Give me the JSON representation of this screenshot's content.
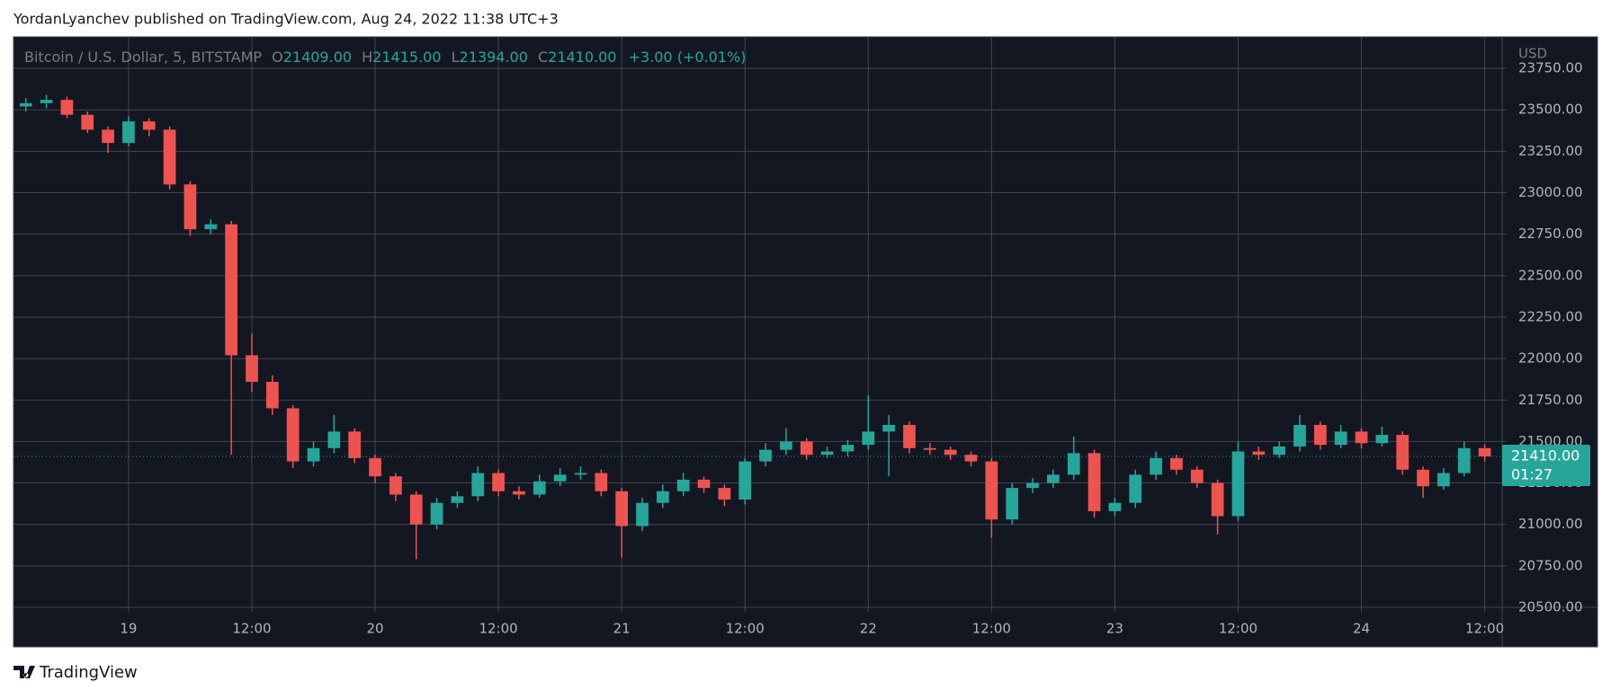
{
  "header": {
    "text": "YordanLyanchev published on TradingView.com, Aug 24, 2022 11:38 UTC+3"
  },
  "footer": {
    "brand": "TradingView"
  },
  "chart_data": {
    "type": "candlestick",
    "legend": {
      "symbol": "Bitcoin / U.S. Dollar, 5, BITSTAMP",
      "o_label": "O",
      "open": "21409.00",
      "h_label": "H",
      "high": "21415.00",
      "l_label": "L",
      "low": "21394.00",
      "c_label": "C",
      "close": "21410.00",
      "change": "+3.00 (+0.01%)"
    },
    "currency": "USD",
    "last_price": {
      "value": 21410,
      "label": "21410.00"
    },
    "countdown": "01:27",
    "up_color": "#26a69a",
    "down_color": "#ef5350",
    "grid": true,
    "xlim": [
      -11.2,
      133.7
    ],
    "xticks": [
      {
        "value": 0,
        "label": "19"
      },
      {
        "value": 12,
        "label": "12:00"
      },
      {
        "value": 24,
        "label": "20"
      },
      {
        "value": 36,
        "label": "12:00"
      },
      {
        "value": 48,
        "label": "21"
      },
      {
        "value": 60,
        "label": "12:00"
      },
      {
        "value": 72,
        "label": "22"
      },
      {
        "value": 84,
        "label": "12:00"
      },
      {
        "value": 96,
        "label": "23"
      },
      {
        "value": 108,
        "label": "12:00"
      },
      {
        "value": 120,
        "label": "24"
      },
      {
        "value": 132,
        "label": "12:00"
      }
    ],
    "ylim": [
      20500,
      23940
    ],
    "yticks": [
      {
        "value": 20500,
        "label": "20500.00"
      },
      {
        "value": 20750,
        "label": "20750.00"
      },
      {
        "value": 21000,
        "label": "21000.00"
      },
      {
        "value": 21250,
        "label": "21250.00"
      },
      {
        "value": 21500,
        "label": "21500.00"
      },
      {
        "value": 21750,
        "label": "21750.00"
      },
      {
        "value": 22000,
        "label": "22000.00"
      },
      {
        "value": 22250,
        "label": "22250.00"
      },
      {
        "value": 22500,
        "label": "22500.00"
      },
      {
        "value": 22750,
        "label": "22750.00"
      },
      {
        "value": 23000,
        "label": "23000.00"
      },
      {
        "value": 23250,
        "label": "23250.00"
      },
      {
        "value": 23500,
        "label": "23500.00"
      },
      {
        "value": 23750,
        "label": "23750.00"
      }
    ],
    "x": [
      -10,
      -8,
      -6,
      -4,
      -2,
      0,
      2,
      4,
      6,
      8,
      10,
      12,
      14,
      16,
      18,
      20,
      22,
      24,
      26,
      28,
      30,
      32,
      34,
      36,
      38,
      40,
      42,
      44,
      46,
      48,
      50,
      52,
      54,
      56,
      58,
      60,
      62,
      64,
      66,
      68,
      70,
      72,
      74,
      76,
      78,
      80,
      82,
      84,
      86,
      88,
      90,
      92,
      94,
      96,
      98,
      100,
      102,
      104,
      106,
      108,
      110,
      112,
      114,
      116,
      118,
      120,
      122,
      124,
      126,
      128,
      130,
      132
    ],
    "open": [
      23520,
      23540,
      23560,
      23470,
      23380,
      23300,
      23430,
      23380,
      23050,
      22780,
      22810,
      22020,
      21860,
      21700,
      21380,
      21460,
      21560,
      21400,
      21290,
      21180,
      21000,
      21130,
      21170,
      21310,
      21200,
      21180,
      21260,
      21300,
      21310,
      21200,
      20990,
      21130,
      21200,
      21270,
      21220,
      21150,
      21380,
      21450,
      21500,
      21420,
      21440,
      21480,
      21560,
      21600,
      21460,
      21450,
      21420,
      21380,
      21030,
      21220,
      21250,
      21300,
      21430,
      21080,
      21130,
      21300,
      21400,
      21330,
      21250,
      21050,
      21440,
      21420,
      21470,
      21600,
      21480,
      21560,
      21490,
      21540,
      21330,
      21230,
      21310,
      21460
    ],
    "high": [
      23570,
      23590,
      23580,
      23490,
      23400,
      23460,
      23450,
      23400,
      23070,
      22840,
      22830,
      22150,
      21900,
      21720,
      21500,
      21660,
      21580,
      21420,
      21310,
      21200,
      21160,
      21200,
      21350,
      21330,
      21230,
      21300,
      21340,
      21350,
      21330,
      21220,
      21160,
      21240,
      21310,
      21290,
      21240,
      21400,
      21490,
      21580,
      21520,
      21470,
      21510,
      21780,
      21660,
      21620,
      21490,
      21470,
      21440,
      21400,
      21250,
      21280,
      21330,
      21530,
      21450,
      21160,
      21330,
      21440,
      21420,
      21350,
      21270,
      21500,
      21470,
      21500,
      21660,
      21620,
      21600,
      21580,
      21590,
      21560,
      21350,
      21340,
      21500,
      21480
    ],
    "low": [
      23490,
      23510,
      23450,
      23360,
      23240,
      23280,
      23340,
      23020,
      22740,
      22750,
      21420,
      21800,
      21660,
      21340,
      21350,
      21430,
      21370,
      21250,
      21140,
      20790,
      20970,
      21100,
      21140,
      21170,
      21150,
      21160,
      21230,
      21270,
      21170,
      20800,
      20960,
      21100,
      21170,
      21190,
      21110,
      21120,
      21350,
      21420,
      21390,
      21400,
      21410,
      21450,
      21290,
      21430,
      21420,
      21390,
      21350,
      20920,
      21000,
      21190,
      21220,
      21270,
      21040,
      21050,
      21100,
      21270,
      21300,
      21220,
      20940,
      21020,
      21390,
      21400,
      21440,
      21450,
      21460,
      21460,
      21470,
      21300,
      21160,
      21210,
      21290,
      21380
    ],
    "close": [
      23540,
      23560,
      23470,
      23380,
      23300,
      23430,
      23380,
      23050,
      22780,
      22810,
      22020,
      21860,
      21700,
      21380,
      21460,
      21560,
      21400,
      21290,
      21180,
      21000,
      21130,
      21170,
      21310,
      21200,
      21180,
      21260,
      21300,
      21310,
      21200,
      20990,
      21130,
      21200,
      21270,
      21220,
      21150,
      21380,
      21450,
      21500,
      21420,
      21440,
      21480,
      21560,
      21600,
      21460,
      21450,
      21420,
      21380,
      21030,
      21220,
      21250,
      21300,
      21430,
      21080,
      21130,
      21300,
      21400,
      21330,
      21250,
      21050,
      21440,
      21420,
      21470,
      21600,
      21480,
      21560,
      21490,
      21540,
      21330,
      21230,
      21310,
      21460,
      21410
    ]
  }
}
